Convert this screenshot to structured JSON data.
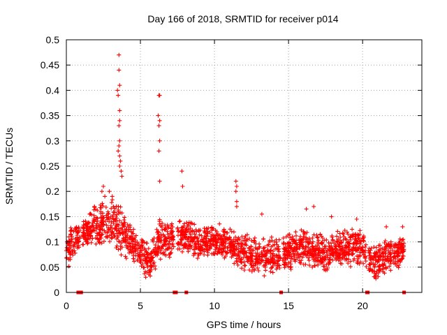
{
  "chart_data": {
    "type": "scatter",
    "title": "Day 166 of 2018, SRMTID for receiver p014",
    "xlabel": "GPS time / hours",
    "ylabel": "SRMTID / TECUs",
    "xlim": [
      0,
      24
    ],
    "ylim": [
      0,
      0.5
    ],
    "xticks": [
      0,
      5,
      10,
      15,
      20
    ],
    "xtick_labels": [
      "0",
      "5",
      "10",
      "15",
      "20"
    ],
    "yticks": [
      0,
      0.05,
      0.1,
      0.15,
      0.2,
      0.25,
      0.3,
      0.35,
      0.4,
      0.45,
      0.5
    ],
    "ytick_labels": [
      "0",
      "0.05",
      "0.1",
      "0.15",
      "0.2",
      "0.25",
      "0.3",
      "0.35",
      "0.4",
      "0.45",
      "0.5"
    ],
    "grid": true,
    "marker": "+",
    "color": "#ff0000",
    "series": [
      {
        "name": "SRMTID",
        "background_band": [
          [
            0,
            0.06,
            0.1,
            0.025
          ],
          [
            0.6,
            0.09,
            0.12,
            0.02
          ],
          [
            1.2,
            0.11,
            0.13,
            0.02
          ],
          [
            2.0,
            0.11,
            0.15,
            0.025
          ],
          [
            2.8,
            0.12,
            0.16,
            0.03
          ],
          [
            3.5,
            0.1,
            0.16,
            0.03
          ],
          [
            4.2,
            0.09,
            0.12,
            0.025
          ],
          [
            5.0,
            0.06,
            0.09,
            0.02
          ],
          [
            5.6,
            0.04,
            0.08,
            0.02
          ],
          [
            6.2,
            0.08,
            0.12,
            0.025
          ],
          [
            7.0,
            0.09,
            0.13,
            0.025
          ],
          [
            8.0,
            0.1,
            0.13,
            0.02
          ],
          [
            9.0,
            0.08,
            0.11,
            0.02
          ],
          [
            10.0,
            0.09,
            0.12,
            0.02
          ],
          [
            11.0,
            0.08,
            0.11,
            0.02
          ],
          [
            12.0,
            0.06,
            0.1,
            0.02
          ],
          [
            13.0,
            0.05,
            0.09,
            0.02
          ],
          [
            14.0,
            0.05,
            0.09,
            0.02
          ],
          [
            15.0,
            0.06,
            0.1,
            0.02
          ],
          [
            16.0,
            0.07,
            0.11,
            0.02
          ],
          [
            17.0,
            0.06,
            0.1,
            0.02
          ],
          [
            18.0,
            0.06,
            0.1,
            0.02
          ],
          [
            19.0,
            0.07,
            0.11,
            0.02
          ],
          [
            20.0,
            0.07,
            0.11,
            0.02
          ],
          [
            20.5,
            0.04,
            0.07,
            0.02
          ],
          [
            21.5,
            0.05,
            0.09,
            0.02
          ],
          [
            22.0,
            0.06,
            0.1,
            0.02
          ],
          [
            22.8,
            0.07,
            0.1,
            0.02
          ]
        ],
        "peaks": [
          [
            3.55,
            0.47
          ],
          [
            3.55,
            0.44
          ],
          [
            3.6,
            0.41
          ],
          [
            3.5,
            0.39
          ],
          [
            3.6,
            0.36
          ],
          [
            3.6,
            0.34
          ],
          [
            3.55,
            0.33
          ],
          [
            3.6,
            0.3
          ],
          [
            3.55,
            0.29
          ],
          [
            3.6,
            0.27
          ],
          [
            3.65,
            0.26
          ],
          [
            3.6,
            0.25
          ],
          [
            3.7,
            0.24
          ],
          [
            3.75,
            0.23
          ],
          [
            3.45,
            0.4
          ],
          [
            3.5,
            0.28
          ],
          [
            6.25,
            0.39
          ],
          [
            6.3,
            0.39
          ],
          [
            6.2,
            0.35
          ],
          [
            6.3,
            0.34
          ],
          [
            6.25,
            0.33
          ],
          [
            6.3,
            0.3
          ],
          [
            6.25,
            0.28
          ],
          [
            6.3,
            0.22
          ],
          [
            7.8,
            0.24
          ],
          [
            7.85,
            0.21
          ],
          [
            11.45,
            0.22
          ],
          [
            11.5,
            0.21
          ],
          [
            11.45,
            0.2
          ],
          [
            11.5,
            0.18
          ],
          [
            11.5,
            0.17
          ],
          [
            16.2,
            0.165
          ],
          [
            16.7,
            0.17
          ],
          [
            13.2,
            0.155
          ],
          [
            17.9,
            0.15
          ],
          [
            19.6,
            0.145
          ],
          [
            21.6,
            0.13
          ],
          [
            22.7,
            0.13
          ],
          [
            2.4,
            0.2
          ],
          [
            2.5,
            0.21
          ],
          [
            2.9,
            0.2
          ],
          [
            3.1,
            0.19
          ],
          [
            2.6,
            0.19
          ]
        ]
      }
    ],
    "ground_markers_x": [
      0.8,
      0.9,
      1.0,
      7.3,
      7.4,
      8.1,
      14.5,
      20.3,
      20.35,
      22.8
    ],
    "ground_marker_y": 0
  }
}
